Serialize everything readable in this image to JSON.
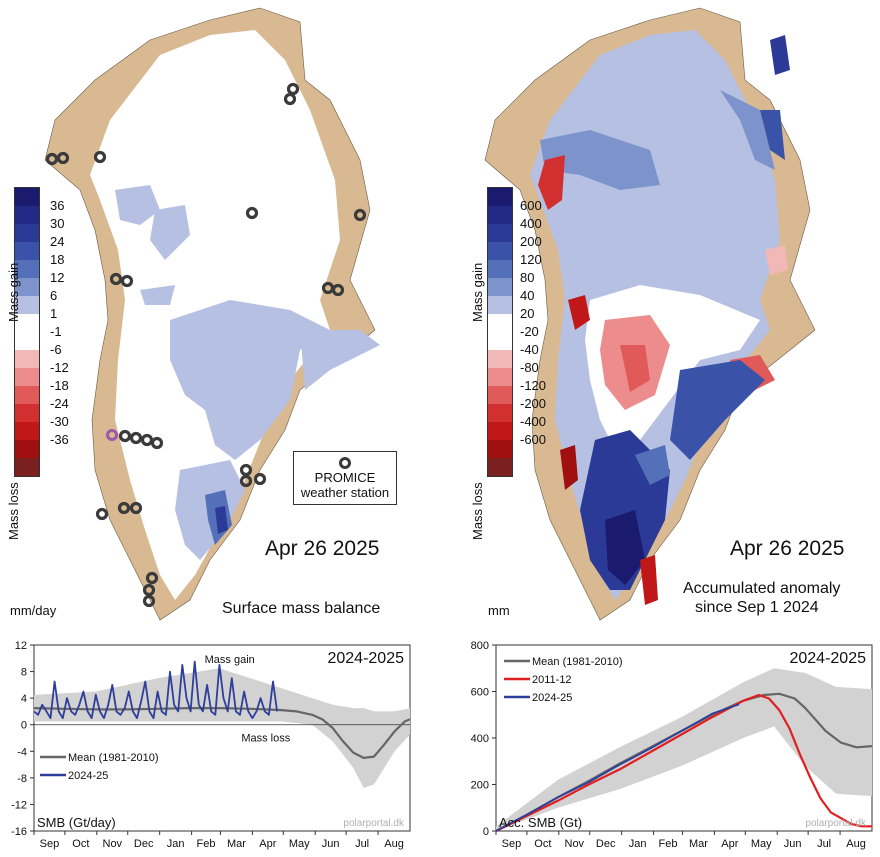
{
  "left_map": {
    "date": "Apr 26 2025",
    "title": "Surface mass balance",
    "unit": "mm/day",
    "gain_label": "Mass gain",
    "loss_label": "Mass loss",
    "scale_labels": [
      "36",
      "30",
      "24",
      "18",
      "12",
      "6",
      "1",
      "-1",
      "-6",
      "-12",
      "-18",
      "-24",
      "-30",
      "-36"
    ],
    "station_legend_l1": "PROMICE",
    "station_legend_l2": "weather station"
  },
  "right_map": {
    "date": "Apr 26 2025",
    "title_l1": "Accumulated anomaly",
    "title_l2": "since Sep 1 2024",
    "unit": "mm",
    "gain_label": "Mass gain",
    "loss_label": "Mass loss",
    "scale_labels": [
      "600",
      "400",
      "200",
      "120",
      "80",
      "40",
      "20",
      "-20",
      "-40",
      "-80",
      "-120",
      "-200",
      "-400",
      "-600"
    ]
  },
  "colors": {
    "land": "#d8b992",
    "ice": "#ffffff",
    "gain_scale": [
      "#1a1a6e",
      "#222a85",
      "#2b3a96",
      "#3a52a8",
      "#5470b8",
      "#7d93cc",
      "#b6c0e3",
      "#ffffff"
    ],
    "loss_scale": [
      "#f2b8b8",
      "#ec8c8c",
      "#e05a5a",
      "#d23030",
      "#c01818",
      "#a01010",
      "#7a2020"
    ],
    "mean_line": "#666666",
    "series_2425": "#2d3f9a",
    "series_1112": "#e02020",
    "band": "#d2d2d2"
  },
  "chart_data": [
    {
      "type": "line",
      "title": "2024-2025",
      "ylabel": "SMB (Gt/day)",
      "ylim": [
        -16,
        12
      ],
      "yticks": [
        12,
        8,
        4,
        0,
        -4,
        -8,
        -12,
        -16
      ],
      "xticks": [
        "Sep",
        "Oct",
        "Nov",
        "Dec",
        "Jan",
        "Feb",
        "Mar",
        "Apr",
        "May",
        "Jun",
        "Jul",
        "Aug"
      ],
      "annotations": [
        "Mass gain",
        "Mass loss"
      ],
      "watermark": "polarportal.dk",
      "x_days": [
        0,
        30,
        61,
        91,
        122,
        153,
        181,
        212,
        242,
        273,
        303,
        334,
        365
      ],
      "series": [
        {
          "name": "Mean (1981-2010)",
          "x": [
            0,
            30,
            60,
            90,
            120,
            150,
            180,
            210,
            225,
            240,
            255,
            270,
            280,
            290,
            300,
            310,
            320,
            330,
            340,
            350,
            360,
            365
          ],
          "y": [
            2.5,
            2.4,
            2.3,
            2.3,
            2.4,
            2.5,
            2.5,
            2.4,
            2.3,
            2.2,
            2.0,
            1.5,
            0.8,
            -0.5,
            -2.5,
            -4.2,
            -5.0,
            -4.8,
            -3.0,
            -1.0,
            0.5,
            0.8
          ]
        },
        {
          "name": "2024-25",
          "x": [
            0,
            4,
            8,
            12,
            16,
            20,
            24,
            28,
            32,
            36,
            40,
            44,
            48,
            52,
            56,
            60,
            64,
            68,
            72,
            76,
            80,
            84,
            88,
            92,
            96,
            100,
            104,
            108,
            112,
            116,
            120,
            124,
            128,
            132,
            136,
            140,
            144,
            148,
            152,
            156,
            160,
            164,
            168,
            172,
            176,
            180,
            184,
            188,
            192,
            196,
            200,
            204,
            208,
            212,
            216,
            220,
            224,
            228,
            232,
            236
          ],
          "y": [
            2,
            1.5,
            3,
            2,
            1,
            6.5,
            2,
            1,
            4,
            2,
            1.5,
            3,
            5,
            2,
            1,
            4.5,
            2,
            1,
            3,
            6,
            2,
            1.5,
            2.5,
            5,
            2,
            1,
            3.5,
            6.5,
            2,
            1,
            5,
            2,
            1.5,
            8,
            3,
            2,
            9,
            4,
            2,
            9.5,
            3,
            2,
            6,
            2,
            1.5,
            9,
            4,
            2,
            7,
            2,
            1.5,
            5,
            2,
            1,
            2,
            4,
            2,
            1.5,
            6.5,
            2
          ]
        },
        {
          "name": "band",
          "x": [
            0,
            60,
            120,
            180,
            240,
            270,
            290,
            310,
            320,
            330,
            350,
            365
          ],
          "upper": [
            4.5,
            5,
            7,
            8.5,
            5.5,
            4,
            3,
            2.5,
            2.5,
            2,
            2,
            2.5
          ],
          "lower": [
            0.5,
            0.5,
            0.5,
            0.5,
            0.5,
            0,
            -2.5,
            -6.5,
            -9.5,
            -9,
            -4,
            -1.5
          ]
        }
      ]
    },
    {
      "type": "line",
      "title": "2024-2025",
      "ylabel": "Acc. SMB (Gt)",
      "ylim": [
        0,
        800
      ],
      "yticks": [
        800,
        600,
        400,
        200,
        0
      ],
      "xticks": [
        "Sep",
        "Oct",
        "Nov",
        "Dec",
        "Jan",
        "Feb",
        "Mar",
        "Apr",
        "May",
        "Jun",
        "Jul",
        "Aug"
      ],
      "watermark": "polarportal.dk",
      "series": [
        {
          "name": "Mean (1981-2010)",
          "x": [
            0,
            30,
            60,
            90,
            120,
            150,
            180,
            210,
            240,
            260,
            275,
            290,
            300,
            310,
            320,
            335,
            350,
            365
          ],
          "y": [
            0,
            70,
            145,
            215,
            290,
            360,
            430,
            500,
            560,
            585,
            590,
            570,
            530,
            480,
            430,
            380,
            360,
            365
          ]
        },
        {
          "name": "2011-12",
          "x": [
            0,
            30,
            60,
            90,
            120,
            150,
            180,
            210,
            240,
            255,
            265,
            275,
            285,
            295,
            305,
            315,
            325,
            335,
            345,
            355,
            365
          ],
          "y": [
            0,
            65,
            130,
            200,
            265,
            340,
            415,
            490,
            560,
            585,
            570,
            520,
            440,
            330,
            230,
            140,
            80,
            55,
            30,
            20,
            20
          ]
        },
        {
          "name": "2024-25",
          "x": [
            0,
            30,
            60,
            90,
            120,
            150,
            180,
            210,
            236
          ],
          "y": [
            0,
            70,
            145,
            210,
            285,
            355,
            430,
            505,
            545
          ]
        },
        {
          "name": "band",
          "x": [
            0,
            60,
            120,
            180,
            240,
            270,
            300,
            330,
            365
          ],
          "upper": [
            20,
            220,
            360,
            490,
            640,
            700,
            680,
            620,
            610
          ],
          "lower": [
            0,
            100,
            180,
            280,
            400,
            450,
            280,
            160,
            150
          ]
        }
      ]
    }
  ]
}
